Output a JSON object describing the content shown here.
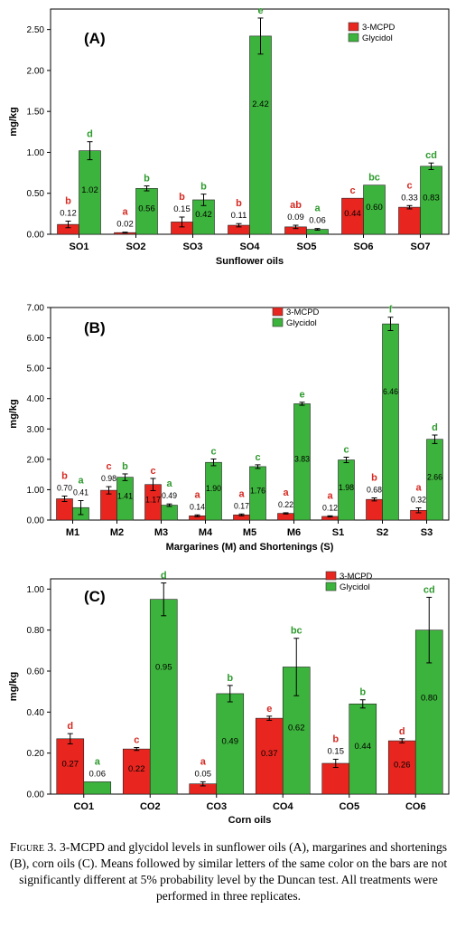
{
  "colors": {
    "mcpd": "#e8261f",
    "glycidol": "#3cb33c",
    "mcpd_letter": "#d42a22",
    "glycidol_letter": "#2e9a2e"
  },
  "chart_data": [
    {
      "panel_label": "(A)",
      "type": "bar",
      "xlabel": "Sunflower oils",
      "ylabel": "mg/kg",
      "ylim": [
        0,
        2.75
      ],
      "yticks": [
        0,
        0.5,
        1.0,
        1.5,
        2.0,
        2.5
      ],
      "ytick_labels": [
        "0.00",
        "0.50",
        "1.00",
        "1.50",
        "2.00",
        "2.50"
      ],
      "legend_position": "top-right",
      "categories": [
        "SO1",
        "SO2",
        "SO3",
        "SO4",
        "SO5",
        "SO6",
        "SO7"
      ],
      "series": [
        {
          "name": "3-MCPD",
          "color": "#e8261f",
          "values": [
            0.12,
            0.02,
            0.15,
            0.11,
            0.09,
            0.44,
            0.33
          ],
          "errors": [
            0.04,
            0.005,
            0.06,
            0.02,
            0.02,
            0.0,
            0.02
          ],
          "labels": [
            "0.12",
            "0.02",
            "0.15",
            "0.11",
            "0.09",
            "0.44",
            "0.33"
          ],
          "letters": [
            "b",
            "a",
            "b",
            "b",
            "ab",
            "c",
            "c"
          ]
        },
        {
          "name": "Glycidol",
          "color": "#3cb33c",
          "values": [
            1.02,
            0.56,
            0.42,
            2.42,
            0.06,
            0.6,
            0.83
          ],
          "errors": [
            0.11,
            0.03,
            0.07,
            0.22,
            0.01,
            0.0,
            0.04
          ],
          "labels": [
            "1.02",
            "0.56",
            "0.42",
            "2.42",
            "0.06",
            "0.60",
            "0.83"
          ],
          "letters": [
            "d",
            "b",
            "b",
            "e",
            "a",
            "bc",
            "cd"
          ]
        }
      ]
    },
    {
      "panel_label": "(B)",
      "type": "bar",
      "xlabel": "Margarines (M) and Shortenings (S)",
      "ylabel": "mg/kg",
      "ylim": [
        0,
        7.0
      ],
      "yticks": [
        0,
        1,
        2,
        3,
        4,
        5,
        6,
        7
      ],
      "ytick_labels": [
        "0.00",
        "1.00",
        "2.00",
        "3.00",
        "4.00",
        "5.00",
        "6.00",
        "7.00"
      ],
      "legend_position": "top-center",
      "categories": [
        "M1",
        "M2",
        "M3",
        "M4",
        "M5",
        "M6",
        "S1",
        "S2",
        "S3"
      ],
      "series": [
        {
          "name": "3-MCPD",
          "color": "#e8261f",
          "values": [
            0.7,
            0.98,
            1.17,
            0.14,
            0.17,
            0.22,
            0.12,
            0.68,
            0.32
          ],
          "errors": [
            0.09,
            0.12,
            0.2,
            0.03,
            0.03,
            0.02,
            0.02,
            0.05,
            0.08
          ],
          "labels": [
            "0.70",
            "0.98",
            "1.17",
            "0.14",
            "0.17",
            "0.22",
            "0.12",
            "0.68",
            "0.32"
          ],
          "letters": [
            "b",
            "c",
            "c",
            "a",
            "a",
            "a",
            "a",
            "b",
            "a"
          ]
        },
        {
          "name": "Glycidol",
          "color": "#3cb33c",
          "values": [
            0.41,
            1.41,
            0.49,
            1.9,
            1.76,
            3.83,
            1.98,
            6.46,
            2.66
          ],
          "errors": [
            0.23,
            0.11,
            0.04,
            0.11,
            0.06,
            0.05,
            0.09,
            0.22,
            0.14
          ],
          "labels": [
            "0.41",
            "1.41",
            "0.49",
            "1.90",
            "1.76",
            "3.83",
            "1.98",
            "6.46",
            "2.66"
          ],
          "letters": [
            "a",
            "b",
            "a",
            "c",
            "c",
            "e",
            "c",
            "f",
            "d"
          ]
        }
      ]
    },
    {
      "panel_label": "(C)",
      "type": "bar",
      "xlabel": "Corn oils",
      "ylabel": "mg/kg",
      "ylim": [
        0,
        1.05
      ],
      "yticks": [
        0,
        0.2,
        0.4,
        0.6,
        0.8,
        1.0
      ],
      "ytick_labels": [
        "0.00",
        "0.20",
        "0.40",
        "0.60",
        "0.80",
        "1.00"
      ],
      "legend_position": "top-right",
      "categories": [
        "CO1",
        "CO2",
        "CO3",
        "CO4",
        "CO5",
        "CO6"
      ],
      "series": [
        {
          "name": "3-MCPD",
          "color": "#e8261f",
          "values": [
            0.27,
            0.22,
            0.05,
            0.37,
            0.15,
            0.26
          ],
          "errors": [
            0.025,
            0.007,
            0.01,
            0.01,
            0.02,
            0.01
          ],
          "labels": [
            "0.27",
            "0.22",
            "0.05",
            "0.37",
            "0.15",
            "0.26"
          ],
          "letters": [
            "d",
            "c",
            "a",
            "e",
            "b",
            "d"
          ]
        },
        {
          "name": "Glycidol",
          "color": "#3cb33c",
          "values": [
            0.06,
            0.95,
            0.49,
            0.62,
            0.44,
            0.8
          ],
          "errors": [
            0.0,
            0.08,
            0.04,
            0.14,
            0.02,
            0.16
          ],
          "labels": [
            "0.06",
            "0.95",
            "0.49",
            "0.62",
            "0.44",
            "0.80"
          ],
          "letters": [
            "a",
            "d",
            "b",
            "bc",
            "b",
            "cd"
          ]
        }
      ]
    }
  ],
  "caption": {
    "figure_label": "Figure 3.",
    "text": "3-MCPD and glycidol levels in sunflower oils (A), margarines and shortenings (B), corn oils (C). Means followed by similar letters of the same color on the bars are not significantly different at 5% probability level by the Duncan test. All treatments were performed in three replicates."
  }
}
